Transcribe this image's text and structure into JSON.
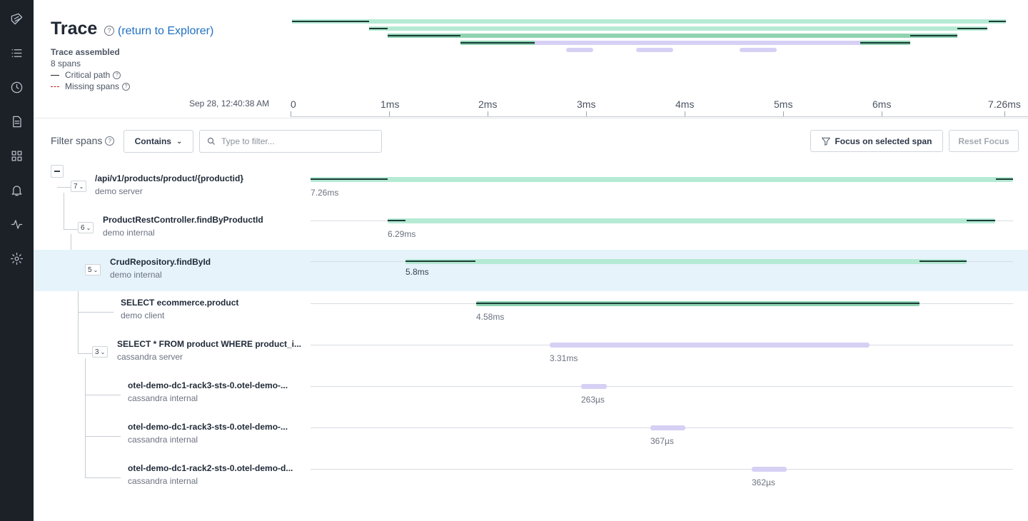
{
  "sidebar": {
    "icons": [
      "logo-icon",
      "list-icon",
      "clock-icon",
      "document-icon",
      "grid-icon",
      "bell-icon",
      "activity-icon",
      "settings-icon"
    ]
  },
  "header": {
    "title": "Trace",
    "return_link": "(return to Explorer)",
    "assembled": "Trace assembled",
    "spans_count": "8 spans",
    "legend_critical": "Critical path",
    "legend_missing": "Missing spans",
    "date": "Sep 28, 12:40:38 AM"
  },
  "axis": {
    "ticks": [
      "0",
      "1ms",
      "2ms",
      "3ms",
      "4ms",
      "5ms",
      "6ms",
      "7.26ms"
    ]
  },
  "filter": {
    "label": "Filter spans",
    "mode": "Contains",
    "placeholder": "Type to filter...",
    "focus_label": "Focus on selected span",
    "reset_label": "Reset Focus"
  },
  "colors": {
    "server": "#b5ead4",
    "client": "#8fd3b1",
    "cassandra": "#d6d0f5",
    "critical": "#1b3a36",
    "selected_row": "#e6f3fb"
  },
  "spans": [
    {
      "name": "/api/v1/products/product/{productid}",
      "service": "demo server",
      "children": "7",
      "duration": "7.26ms",
      "selected": false
    },
    {
      "name": "ProductRestController.findByProductId",
      "service": "demo internal",
      "children": "6",
      "duration": "6.29ms",
      "selected": false
    },
    {
      "name": "CrudRepository.findById",
      "service": "demo internal",
      "children": "5",
      "duration": "5.8ms",
      "selected": true
    },
    {
      "name": "SELECT ecommerce.product",
      "service": "demo client",
      "children": "",
      "duration": "4.58ms",
      "selected": false
    },
    {
      "name": "SELECT * FROM product WHERE product_i...",
      "service": "cassandra server",
      "children": "3",
      "duration": "3.31ms",
      "selected": false
    },
    {
      "name": "otel-demo-dc1-rack3-sts-0.otel-demo-...",
      "service": "cassandra internal",
      "children": "",
      "duration": "263µs",
      "selected": false
    },
    {
      "name": "otel-demo-dc1-rack3-sts-0.otel-demo-...",
      "service": "cassandra internal",
      "children": "",
      "duration": "367µs",
      "selected": false
    },
    {
      "name": "otel-demo-dc1-rack2-sts-0.otel-demo-d...",
      "service": "cassandra internal",
      "children": "",
      "duration": "362µs",
      "selected": false
    }
  ]
}
